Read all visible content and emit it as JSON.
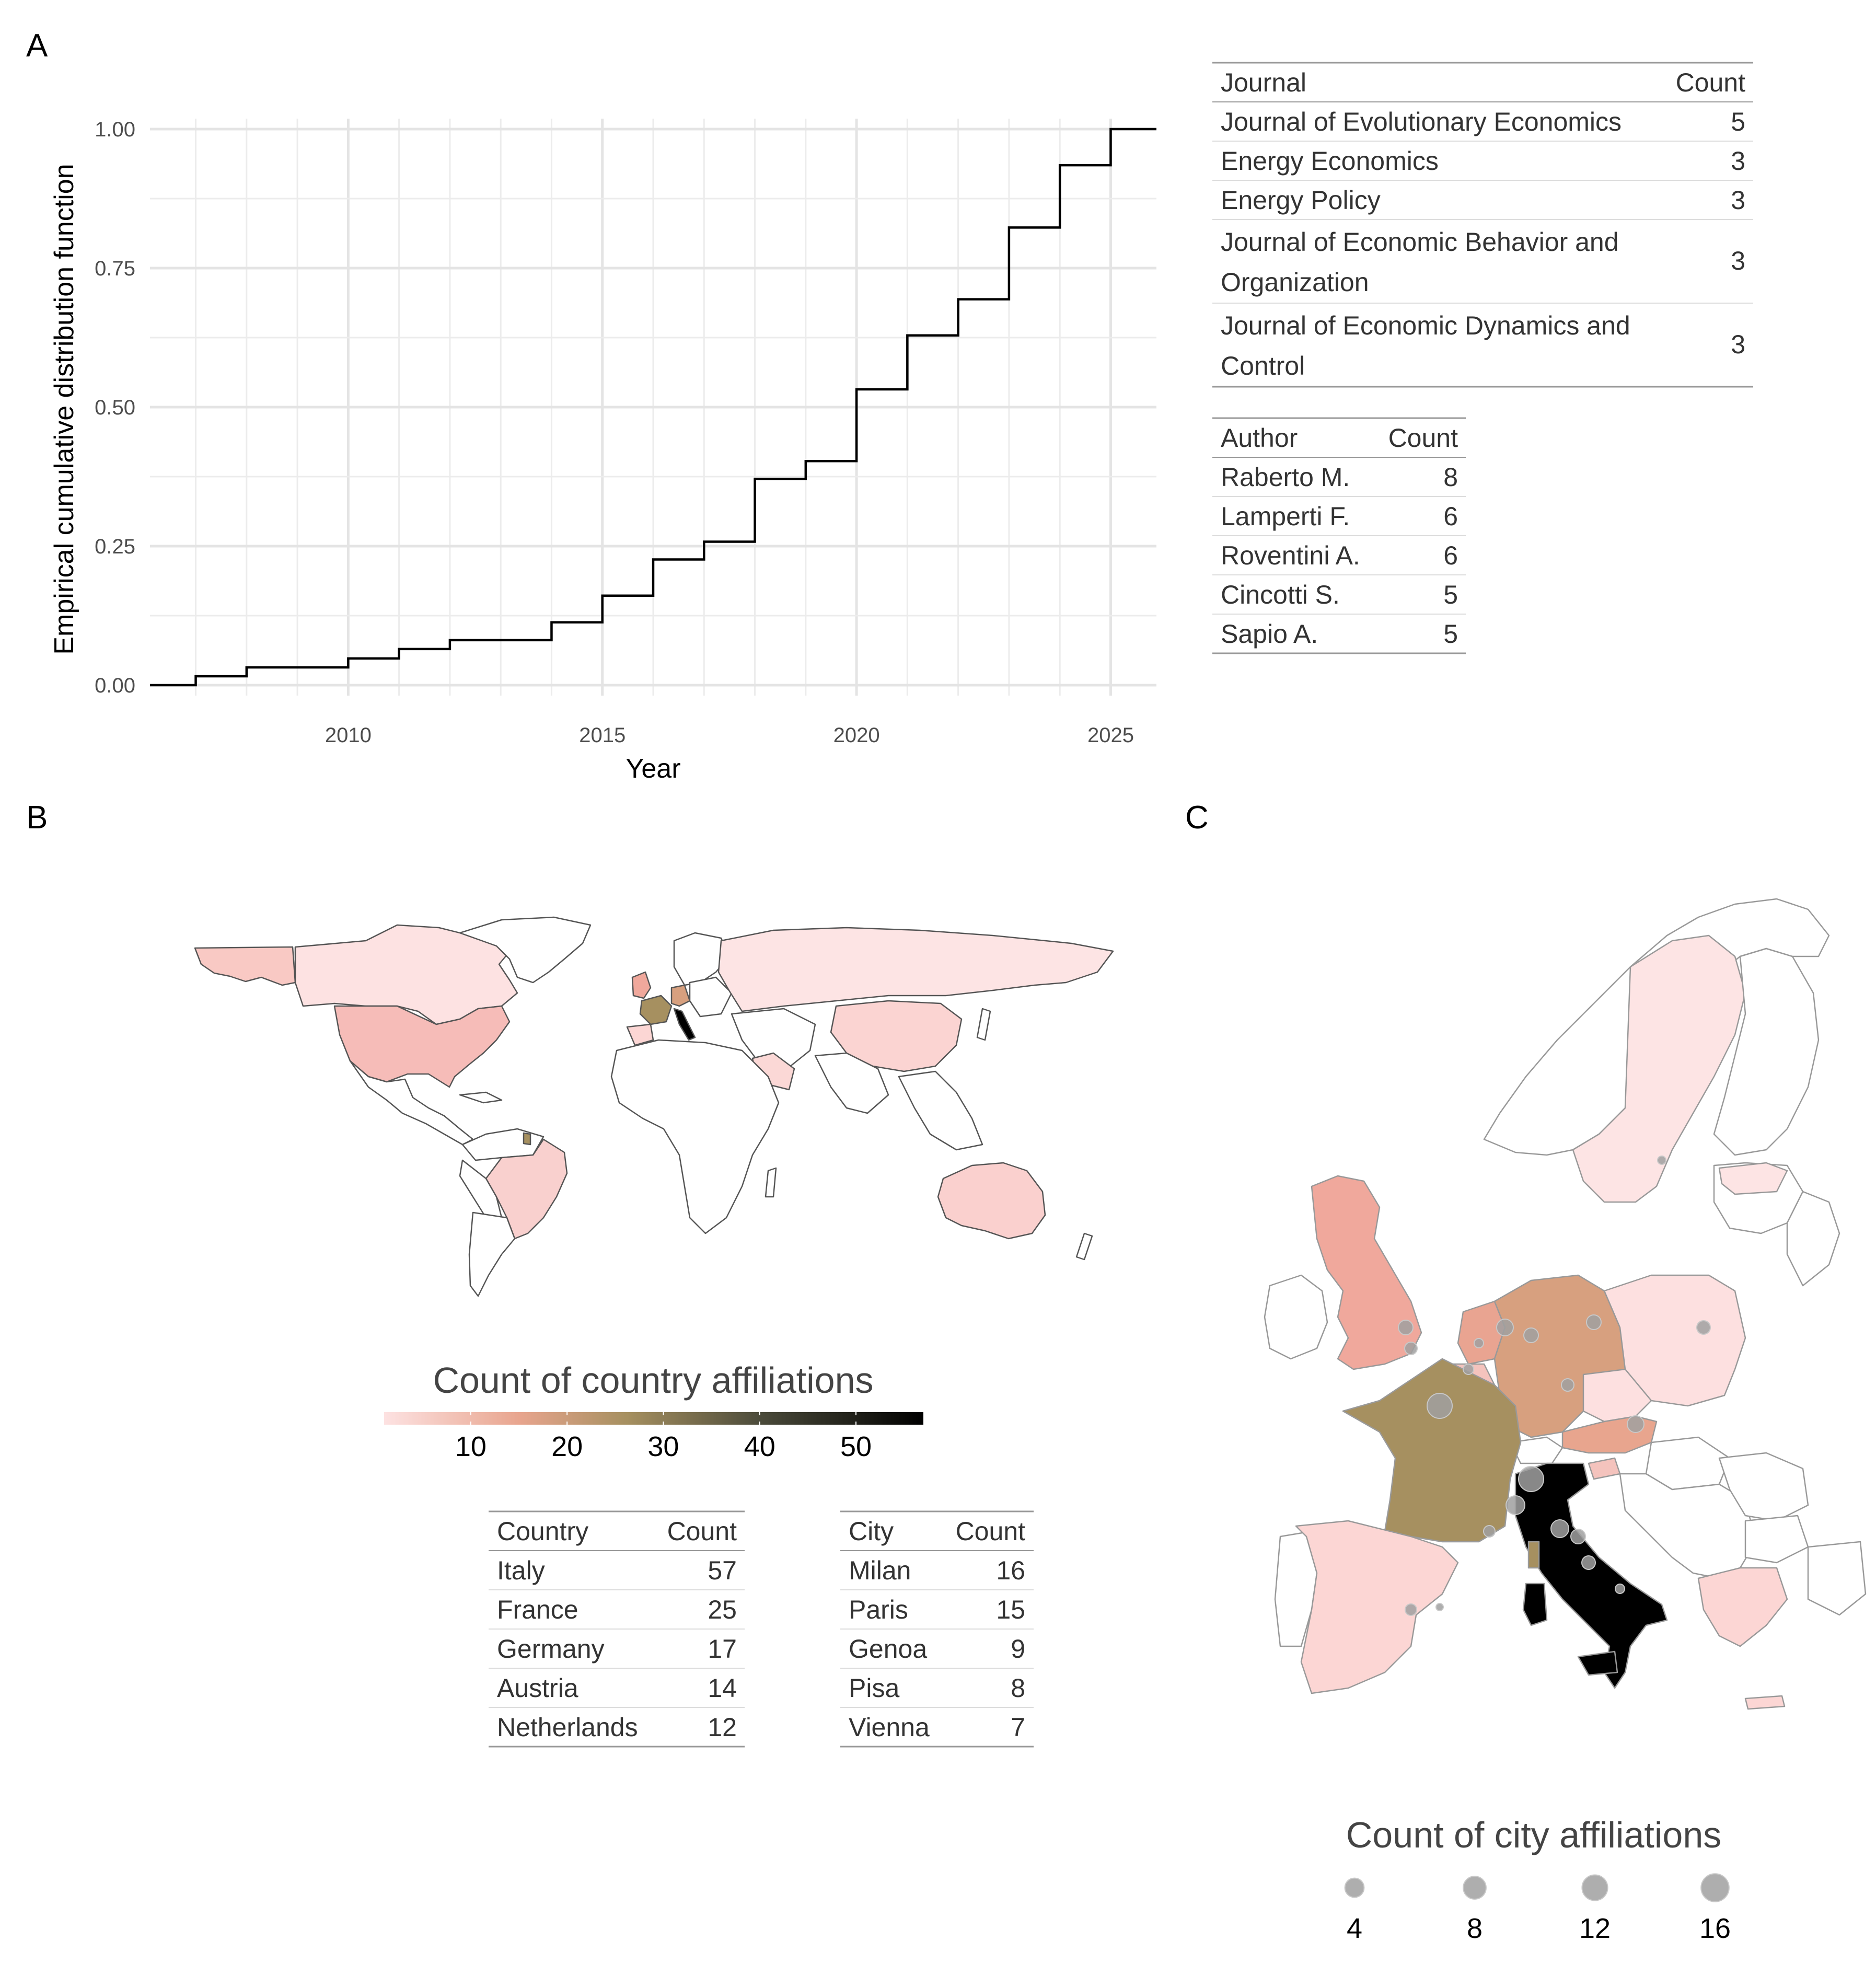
{
  "panel_labels": {
    "a": "A",
    "b": "B",
    "c": "C"
  },
  "chart_data": [
    {
      "type": "line",
      "subtype": "step-ecdf",
      "title": "",
      "xlabel": "Year",
      "ylabel": "Empirical cumulative distribution function",
      "xlim": [
        2006.1,
        2025.9
      ],
      "ylim": [
        0,
        1
      ],
      "x_ticks": [
        2010,
        2015,
        2020,
        2025
      ],
      "y_ticks": [
        0.0,
        0.25,
        0.5,
        0.75,
        1.0
      ],
      "y_tick_labels": [
        "0.00",
        "0.25",
        "0.50",
        "0.75",
        "1.00"
      ],
      "x": [
        2006.1,
        2007,
        2008,
        2009,
        2010,
        2011,
        2012,
        2013,
        2014,
        2015,
        2016,
        2017,
        2018,
        2019,
        2020,
        2021,
        2022,
        2023,
        2024,
        2025,
        2025.9
      ],
      "y": [
        0.0,
        0.016,
        0.032,
        0.032,
        0.048,
        0.065,
        0.081,
        0.081,
        0.113,
        0.161,
        0.226,
        0.258,
        0.371,
        0.403,
        0.532,
        0.629,
        0.694,
        0.823,
        0.935,
        1.0,
        1.0
      ],
      "grid": true
    },
    {
      "type": "table",
      "name": "journals",
      "columns": [
        "Journal",
        "Count"
      ],
      "rows": [
        [
          "Journal of Evolutionary Economics",
          "5"
        ],
        [
          "Energy Economics",
          "3"
        ],
        [
          "Energy Policy",
          "3"
        ],
        [
          "Journal of Economic Behavior and Organization",
          "3"
        ],
        [
          "Journal of Economic Dynamics and Control",
          "3"
        ]
      ]
    },
    {
      "type": "table",
      "name": "authors",
      "columns": [
        "Author",
        "Count"
      ],
      "rows": [
        [
          "Raberto M.",
          "8"
        ],
        [
          "Lamperti F.",
          "6"
        ],
        [
          "Roventini A.",
          "6"
        ],
        [
          "Cincotti S.",
          "5"
        ],
        [
          "Sapio A.",
          "5"
        ]
      ]
    },
    {
      "type": "heatmap",
      "name": "world-choropleth",
      "legend_title": "Count of country affiliations",
      "legend_ticks": [
        10,
        20,
        30,
        40,
        50
      ],
      "color_stops": [
        "#fde0e0",
        "#e8a58e",
        "#a69060",
        "#4a4a3a",
        "#000000"
      ],
      "range": [
        1,
        57
      ]
    },
    {
      "type": "table",
      "name": "countries",
      "columns": [
        "Country",
        "Count"
      ],
      "rows": [
        [
          "Italy",
          "57"
        ],
        [
          "France",
          "25"
        ],
        [
          "Germany",
          "17"
        ],
        [
          "Austria",
          "14"
        ],
        [
          "Netherlands",
          "12"
        ]
      ]
    },
    {
      "type": "table",
      "name": "cities",
      "columns": [
        "City",
        "Count"
      ],
      "rows": [
        [
          "Milan",
          "16"
        ],
        [
          "Paris",
          "15"
        ],
        [
          "Genoa",
          "9"
        ],
        [
          "Pisa",
          "8"
        ],
        [
          "Vienna",
          "7"
        ]
      ]
    },
    {
      "type": "scatter",
      "name": "europe-city-map",
      "legend_title": "Count of city affiliations",
      "size_legend": [
        4,
        8,
        12,
        16
      ]
    }
  ]
}
